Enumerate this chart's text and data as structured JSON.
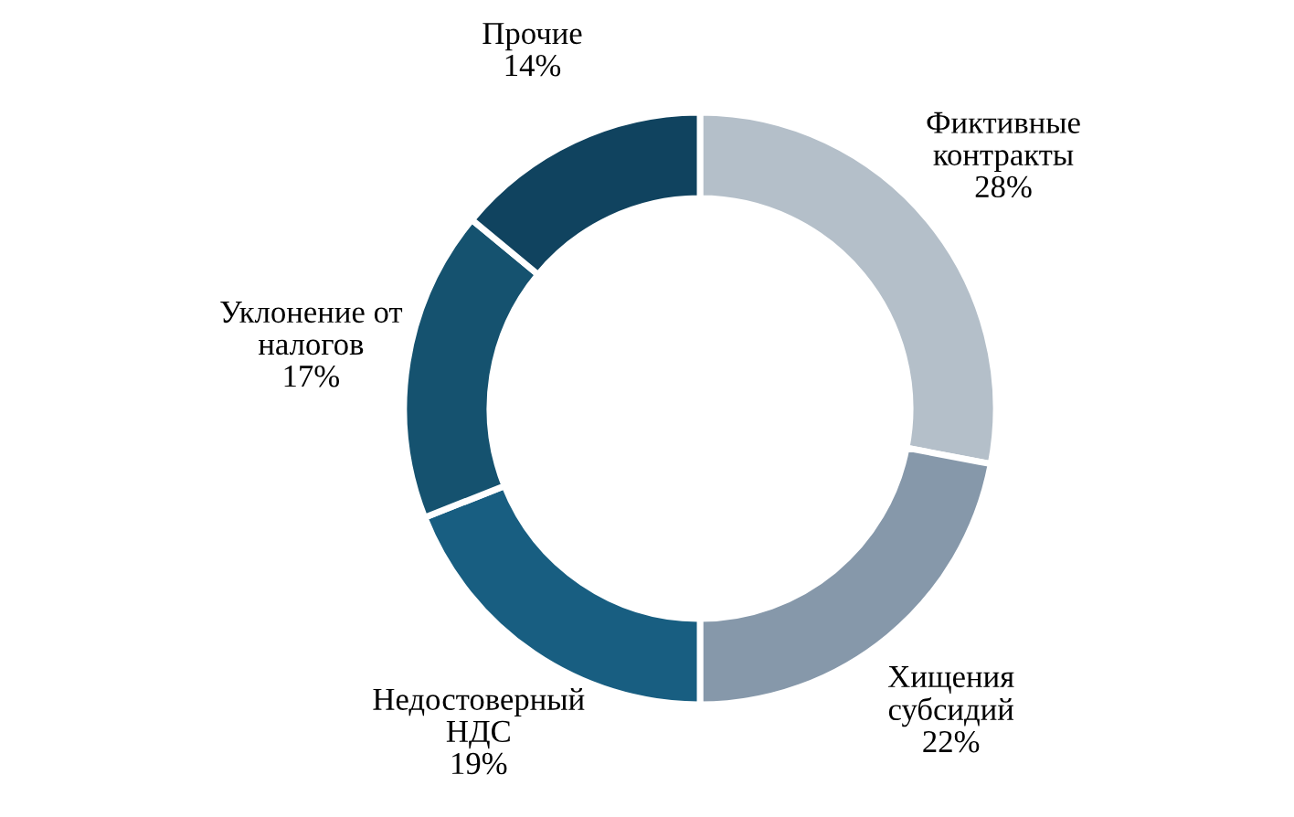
{
  "chart_data": {
    "type": "donut",
    "categories": [
      "Фиктивные\nконтракты",
      "Хищения\nсубсидий",
      "Недостоверный\nНДС",
      "Уклонение от\nналогов",
      "Прочие"
    ],
    "values": [
      28,
      22,
      19,
      17,
      14
    ],
    "value_labels": [
      "28%",
      "22%",
      "19%",
      "17%",
      "14%"
    ],
    "colors": [
      "#b4bfc9",
      "#8698aa",
      "#185e81",
      "#15526f",
      "#10435f"
    ],
    "legend": false
  }
}
